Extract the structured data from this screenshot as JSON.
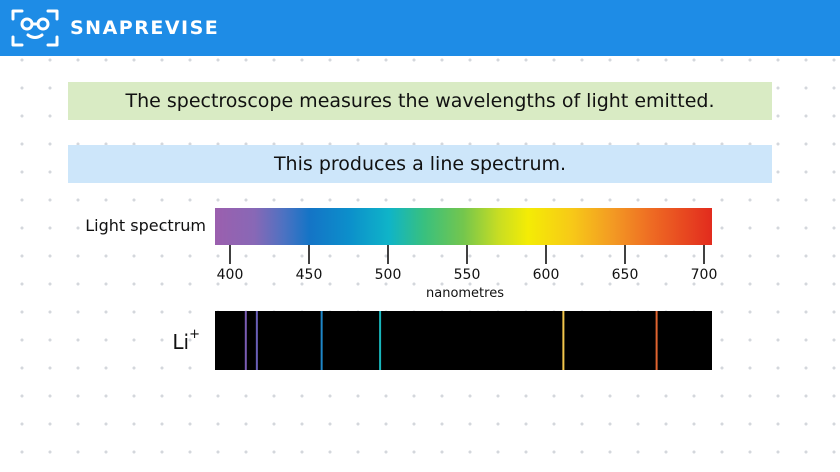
{
  "header": {
    "brand": "SNAPREVISE",
    "logo_icon": "robot-face-icon",
    "background_color": "#1e8ce6"
  },
  "banners": {
    "measure_text": "The spectroscope measures the wavelengths of light emitted.",
    "measure_color": "#d9ebc4",
    "result_text": "This produces a line spectrum.",
    "result_color": "#cde6fa"
  },
  "spectrum": {
    "label": "Light spectrum",
    "axis_unit": "nanometres",
    "axis_min": 400,
    "axis_max": 700,
    "ticks": [
      400,
      450,
      500,
      550,
      600,
      650,
      700
    ],
    "tick_labels": [
      "400",
      "450",
      "500",
      "550",
      "600",
      "650",
      "700"
    ]
  },
  "line_spectrum": {
    "element": "Li",
    "charge": "+",
    "background_color": "#000000",
    "lines": [
      {
        "wavelength": 410,
        "color": "#7b5cb4"
      },
      {
        "wavelength": 417,
        "color": "#6a5fb8"
      },
      {
        "wavelength": 458,
        "color": "#1e86c8"
      },
      {
        "wavelength": 495,
        "color": "#18b6bc"
      },
      {
        "wavelength": 611,
        "color": "#f2c64c"
      },
      {
        "wavelength": 670,
        "color": "#e0632f"
      }
    ]
  }
}
